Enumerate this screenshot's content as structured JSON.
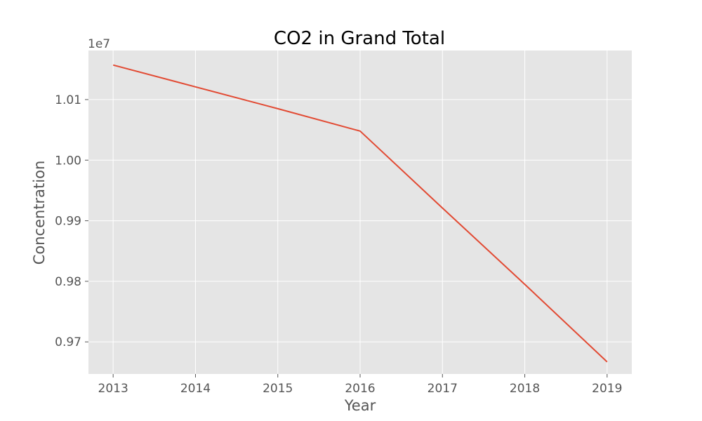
{
  "chart_data": {
    "type": "line",
    "title": "CO2 in Grand Total",
    "xlabel": "Year",
    "ylabel": "Concentration",
    "y_offset_label": "1e7",
    "x": [
      2013,
      2014,
      2015,
      2016,
      2017,
      2018,
      2019
    ],
    "x_ticks": [
      "2013",
      "2014",
      "2015",
      "2016",
      "2017",
      "2018",
      "2019"
    ],
    "y_ticks": [
      "0.97",
      "0.98",
      "0.99",
      "1.00",
      "1.01"
    ],
    "y_tick_values": [
      0.97,
      0.98,
      0.99,
      1.0,
      1.01
    ],
    "xlim": [
      2012.7,
      2019.3
    ],
    "ylim": [
      0.9647,
      1.0181
    ],
    "series": [
      {
        "color": "#e24a33",
        "values": [
          1.0157,
          1.0121,
          1.0085,
          1.0048,
          0.9921,
          0.9795,
          0.9667
        ]
      }
    ],
    "grid": true,
    "legend": "none",
    "style": {
      "background": "#e5e5e5",
      "grid_color": "#ffffff"
    }
  }
}
